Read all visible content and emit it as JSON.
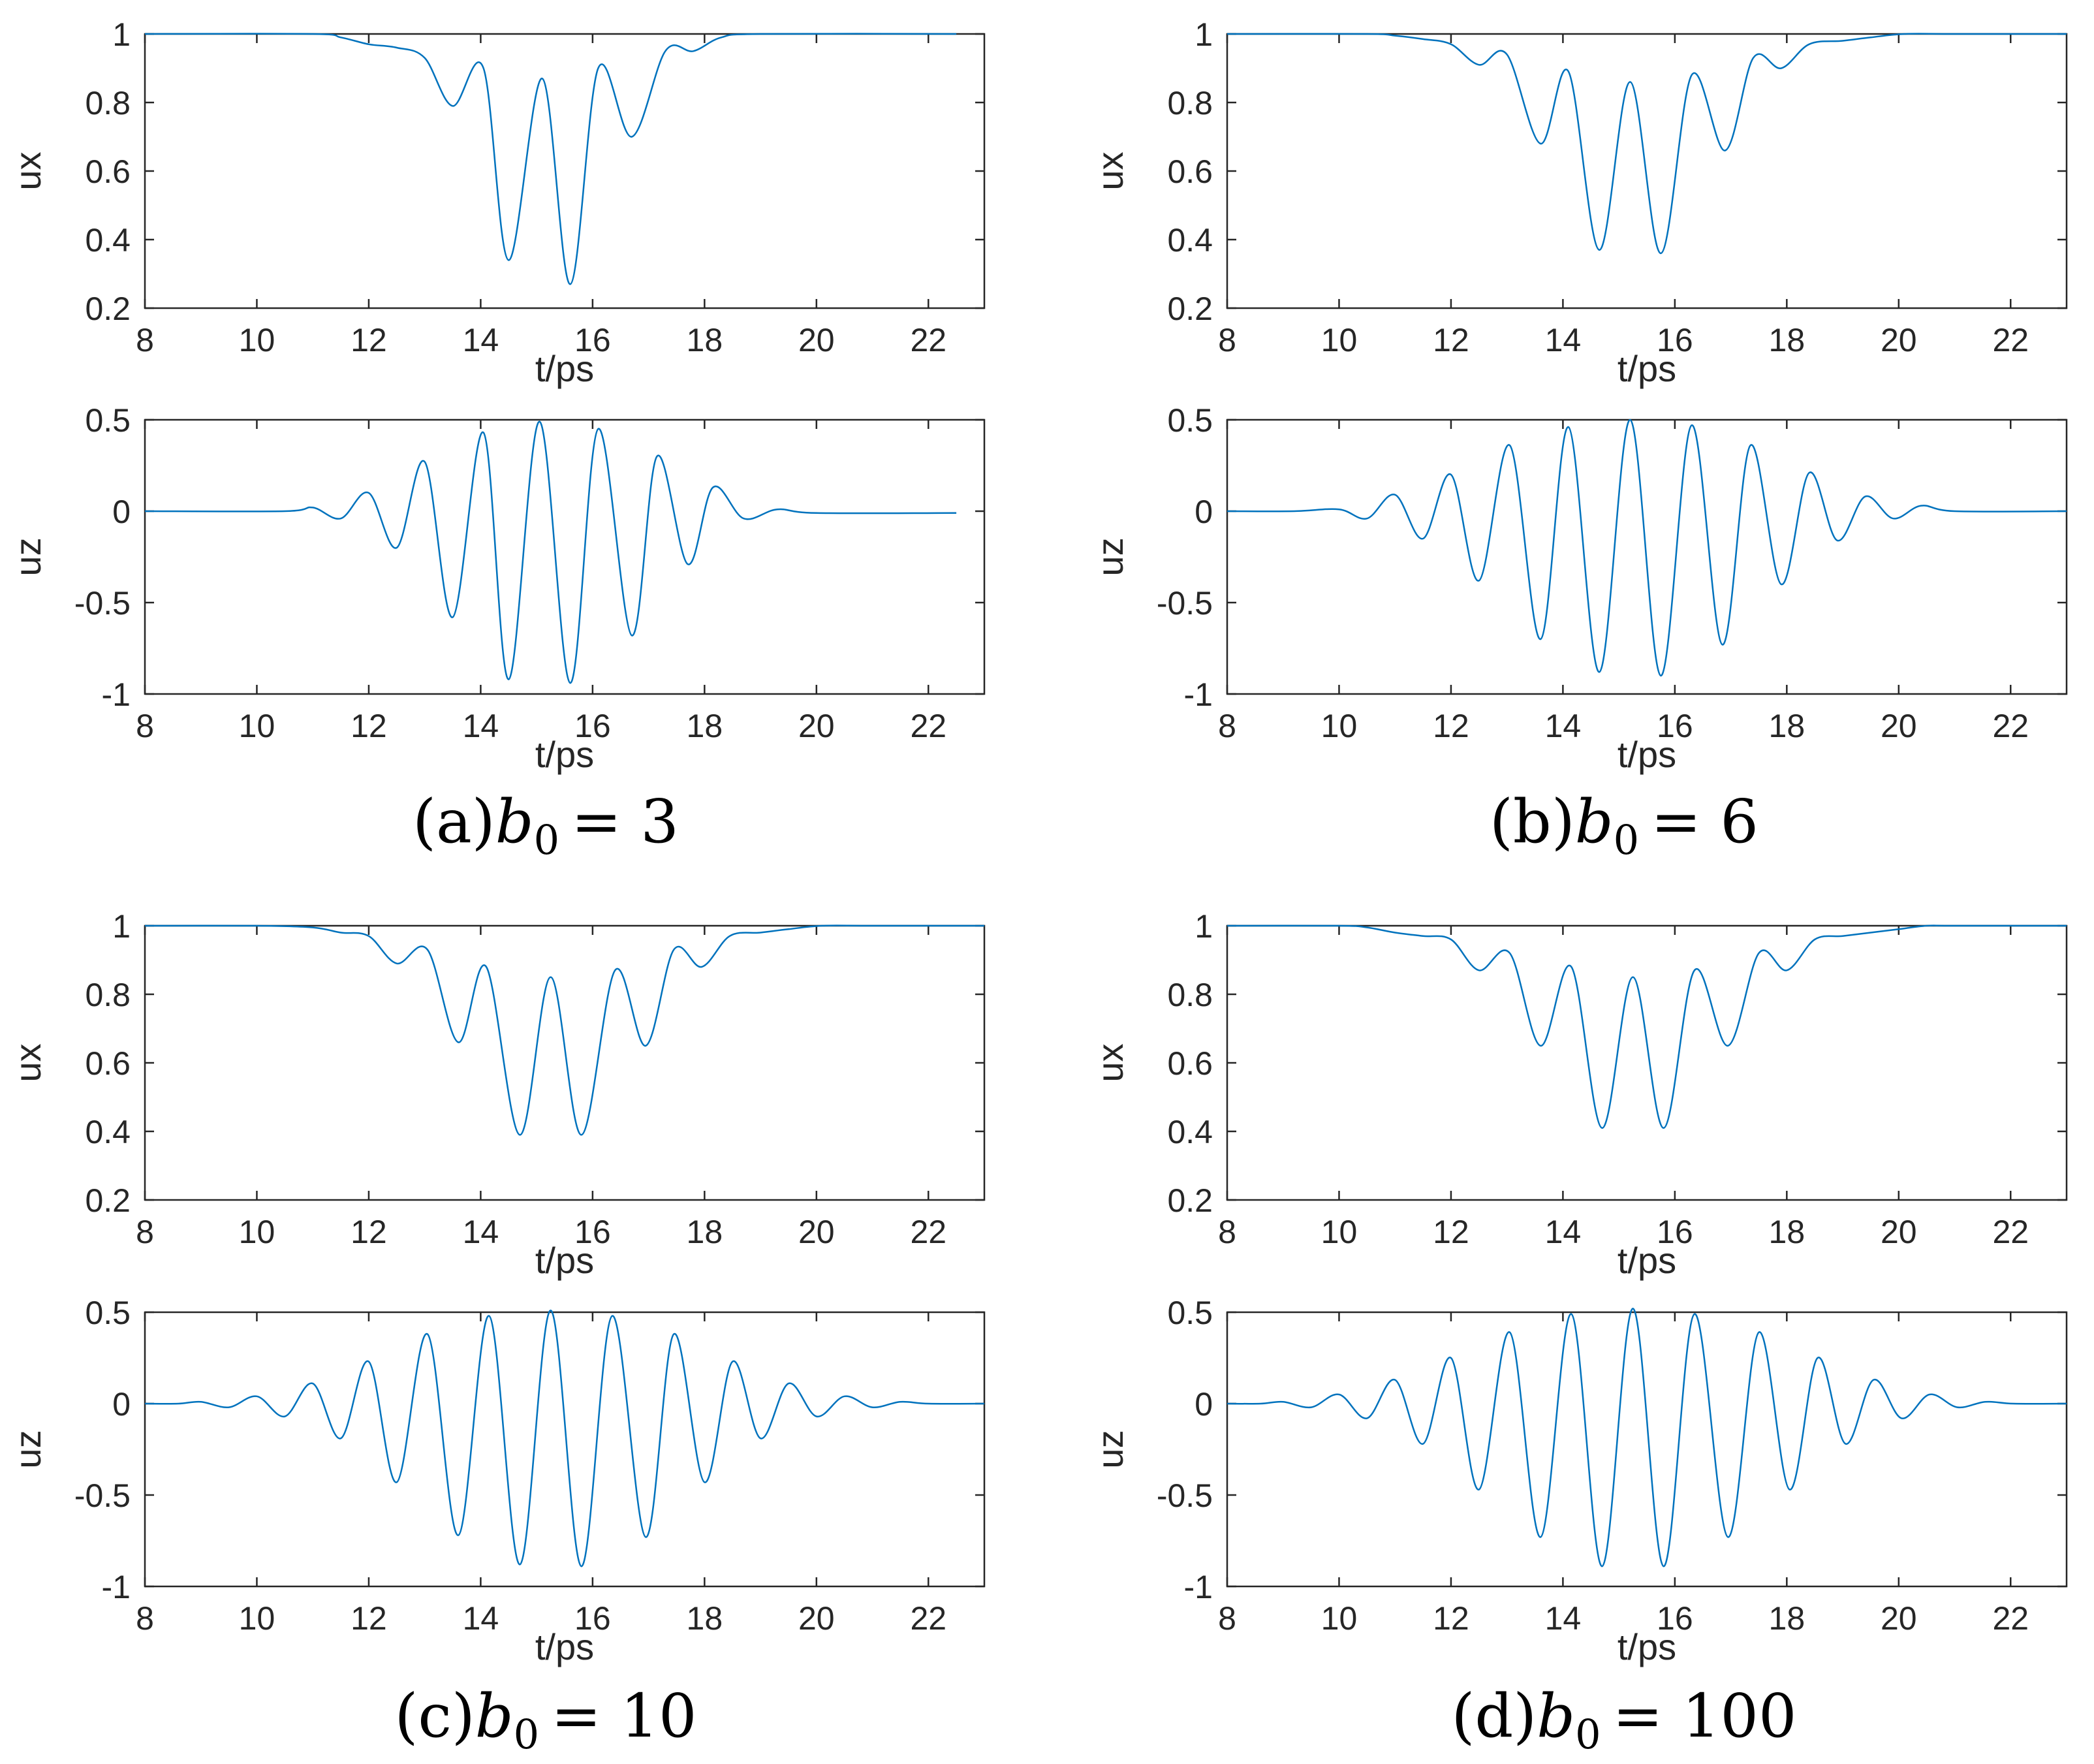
{
  "figure": {
    "panels": [
      {
        "id": "a",
        "caption_prefix": "(a)",
        "b_symbol": "b",
        "b_sub": "0",
        "b_value": "= 3"
      },
      {
        "id": "b",
        "caption_prefix": "(b)",
        "b_symbol": "b",
        "b_sub": "0",
        "b_value": "= 6"
      },
      {
        "id": "c",
        "caption_prefix": "(c)",
        "b_symbol": "b",
        "b_sub": "0",
        "b_value": "= 10"
      },
      {
        "id": "d",
        "caption_prefix": "(d)",
        "b_symbol": "b",
        "b_sub": "0",
        "b_value": "= 100"
      }
    ]
  },
  "chart_data": [
    {
      "panel": "a",
      "subplot": "ux",
      "type": "line",
      "xlabel": "t/ps",
      "ylabel": "ux",
      "xlim": [
        8,
        23
      ],
      "ylim": [
        0.2,
        1
      ],
      "xticks": [
        "8",
        "10",
        "12",
        "14",
        "16",
        "18",
        "20",
        "22"
      ],
      "yticks": [
        "0.2",
        "0.4",
        "0.6",
        "0.8",
        "1"
      ],
      "line_color": "#0072BD",
      "series": [
        {
          "x": [
            8,
            11.0,
            11.5,
            12.0,
            12.5,
            13.0,
            13.5,
            14.05,
            14.5,
            15.1,
            15.6,
            16.1,
            16.7,
            17.3,
            17.8,
            18.3,
            19,
            22.5
          ],
          "y": [
            1,
            1,
            0.99,
            0.97,
            0.96,
            0.93,
            0.79,
            0.9,
            0.34,
            0.87,
            0.27,
            0.9,
            0.7,
            0.95,
            0.95,
            0.99,
            1,
            1
          ]
        }
      ]
    },
    {
      "panel": "a",
      "subplot": "uz",
      "type": "line",
      "xlabel": "t/ps",
      "ylabel": "uz",
      "xlim": [
        8,
        23
      ],
      "ylim": [
        -1,
        0.5
      ],
      "xticks": [
        "8",
        "10",
        "12",
        "14",
        "16",
        "18",
        "20",
        "22"
      ],
      "yticks": [
        "-1",
        "-0.5",
        "0",
        "0.5"
      ],
      "line_color": "#0072BD",
      "series": [
        {
          "x": [
            8,
            10.5,
            11.0,
            11.5,
            12.0,
            12.5,
            13.0,
            13.5,
            14.05,
            14.5,
            15.05,
            15.6,
            16.1,
            16.7,
            17.15,
            17.7,
            18.15,
            18.7,
            19.3,
            20.0,
            22.5
          ],
          "y": [
            0,
            0,
            0.02,
            -0.04,
            0.1,
            -0.2,
            0.27,
            -0.58,
            0.43,
            -0.92,
            0.49,
            -0.94,
            0.45,
            -0.68,
            0.3,
            -0.29,
            0.13,
            -0.04,
            0.01,
            -0.01,
            -0.01
          ]
        }
      ]
    },
    {
      "panel": "b",
      "subplot": "ux",
      "type": "line",
      "xlabel": "t/ps",
      "ylabel": "ux",
      "xlim": [
        8,
        23
      ],
      "ylim": [
        0.2,
        1
      ],
      "xticks": [
        "8",
        "10",
        "12",
        "14",
        "16",
        "18",
        "20",
        "22"
      ],
      "yticks": [
        "0.2",
        "0.4",
        "0.6",
        "0.8",
        "1"
      ],
      "line_color": "#0072BD",
      "series": [
        {
          "x": [
            8,
            10.5,
            11.0,
            11.5,
            12.0,
            12.5,
            13.0,
            13.6,
            14.1,
            14.65,
            15.2,
            15.75,
            16.3,
            16.9,
            17.4,
            17.9,
            18.4,
            19.0,
            19.5,
            20.1,
            21,
            23
          ],
          "y": [
            1,
            1,
            0.995,
            0.985,
            0.97,
            0.91,
            0.94,
            0.68,
            0.89,
            0.37,
            0.86,
            0.36,
            0.88,
            0.66,
            0.93,
            0.9,
            0.97,
            0.98,
            0.99,
            1,
            1,
            1
          ]
        }
      ]
    },
    {
      "panel": "b",
      "subplot": "uz",
      "type": "line",
      "xlabel": "t/ps",
      "ylabel": "uz",
      "xlim": [
        8,
        23
      ],
      "ylim": [
        -1,
        0.5
      ],
      "xticks": [
        "8",
        "10",
        "12",
        "14",
        "16",
        "18",
        "20",
        "22"
      ],
      "yticks": [
        "-1",
        "-0.5",
        "0",
        "0.5"
      ],
      "line_color": "#0072BD",
      "series": [
        {
          "x": [
            8,
            9.2,
            10.0,
            10.5,
            11.0,
            11.5,
            12.0,
            12.5,
            13.05,
            13.6,
            14.1,
            14.65,
            15.2,
            15.75,
            16.3,
            16.85,
            17.35,
            17.9,
            18.4,
            18.9,
            19.4,
            19.9,
            20.4,
            21.0,
            23
          ],
          "y": [
            0,
            0,
            0.01,
            -0.04,
            0.09,
            -0.15,
            0.2,
            -0.38,
            0.36,
            -0.7,
            0.46,
            -0.88,
            0.5,
            -0.9,
            0.47,
            -0.73,
            0.36,
            -0.4,
            0.21,
            -0.16,
            0.08,
            -0.04,
            0.03,
            0,
            0
          ]
        }
      ]
    },
    {
      "panel": "c",
      "subplot": "ux",
      "type": "line",
      "xlabel": "t/ps",
      "ylabel": "ux",
      "xlim": [
        8,
        23
      ],
      "ylim": [
        0.2,
        1
      ],
      "xticks": [
        "8",
        "10",
        "12",
        "14",
        "16",
        "18",
        "20",
        "22"
      ],
      "yticks": [
        "0.2",
        "0.4",
        "0.6",
        "0.8",
        "1"
      ],
      "line_color": "#0072BD",
      "series": [
        {
          "x": [
            8,
            10,
            11.0,
            11.5,
            12.0,
            12.5,
            13.05,
            13.6,
            14.1,
            14.7,
            15.25,
            15.8,
            16.4,
            16.95,
            17.45,
            17.95,
            18.45,
            19.0,
            19.5,
            20.1,
            21,
            23
          ],
          "y": [
            1,
            1,
            0.995,
            0.98,
            0.97,
            0.89,
            0.93,
            0.66,
            0.88,
            0.39,
            0.85,
            0.39,
            0.87,
            0.65,
            0.93,
            0.88,
            0.97,
            0.98,
            0.99,
            1,
            1,
            1
          ]
        }
      ]
    },
    {
      "panel": "c",
      "subplot": "uz",
      "type": "line",
      "xlabel": "t/ps",
      "ylabel": "uz",
      "xlim": [
        8,
        23
      ],
      "ylim": [
        -1,
        0.5
      ],
      "xticks": [
        "8",
        "10",
        "12",
        "14",
        "16",
        "18",
        "20",
        "22"
      ],
      "yticks": [
        "-1",
        "-0.5",
        "0",
        "0.5"
      ],
      "line_color": "#0072BD",
      "series": [
        {
          "x": [
            8,
            8.6,
            9.0,
            9.5,
            10.0,
            10.5,
            11.0,
            11.5,
            12.0,
            12.5,
            13.05,
            13.6,
            14.15,
            14.7,
            15.25,
            15.8,
            16.35,
            16.95,
            17.45,
            18.0,
            18.5,
            19.0,
            19.5,
            20.0,
            20.5,
            21.0,
            21.5,
            22.0,
            23
          ],
          "y": [
            0,
            0,
            0.01,
            -0.02,
            0.04,
            -0.07,
            0.11,
            -0.19,
            0.23,
            -0.43,
            0.38,
            -0.72,
            0.48,
            -0.88,
            0.51,
            -0.89,
            0.48,
            -0.73,
            0.38,
            -0.43,
            0.23,
            -0.19,
            0.11,
            -0.07,
            0.04,
            -0.02,
            0.01,
            0,
            0
          ]
        }
      ]
    },
    {
      "panel": "d",
      "subplot": "ux",
      "type": "line",
      "xlabel": "t/ps",
      "ylabel": "ux",
      "xlim": [
        8,
        23
      ],
      "ylim": [
        0.2,
        1
      ],
      "xticks": [
        "8",
        "10",
        "12",
        "14",
        "16",
        "18",
        "20",
        "22"
      ],
      "yticks": [
        "0.2",
        "0.4",
        "0.6",
        "0.8",
        "1"
      ],
      "line_color": "#0072BD",
      "series": [
        {
          "x": [
            8,
            10,
            10.5,
            11.0,
            11.5,
            12.0,
            12.5,
            13.05,
            13.6,
            14.15,
            14.7,
            15.25,
            15.8,
            16.35,
            16.95,
            17.5,
            18.0,
            18.5,
            19.0,
            19.5,
            20.0,
            20.5,
            21,
            23
          ],
          "y": [
            1,
            1,
            0.995,
            0.98,
            0.97,
            0.96,
            0.87,
            0.92,
            0.65,
            0.88,
            0.41,
            0.85,
            0.41,
            0.87,
            0.65,
            0.92,
            0.87,
            0.96,
            0.97,
            0.98,
            0.99,
            1,
            1,
            1
          ]
        }
      ]
    },
    {
      "panel": "d",
      "subplot": "uz",
      "type": "line",
      "xlabel": "t/ps",
      "ylabel": "uz",
      "xlim": [
        8,
        23
      ],
      "ylim": [
        -1,
        0.5
      ],
      "xticks": [
        "8",
        "10",
        "12",
        "14",
        "16",
        "18",
        "20",
        "22"
      ],
      "yticks": [
        "-1",
        "-0.5",
        "0",
        "0.5"
      ],
      "line_color": "#0072BD",
      "series": [
        {
          "x": [
            8,
            8.6,
            9.0,
            9.5,
            10.0,
            10.5,
            11.0,
            11.5,
            12.0,
            12.5,
            13.05,
            13.6,
            14.15,
            14.7,
            15.25,
            15.8,
            16.35,
            16.95,
            17.5,
            18.05,
            18.55,
            19.05,
            19.55,
            20.05,
            20.55,
            21.05,
            21.55,
            22.05,
            23
          ],
          "y": [
            0,
            0,
            0.01,
            -0.02,
            0.05,
            -0.08,
            0.13,
            -0.22,
            0.25,
            -0.47,
            0.39,
            -0.73,
            0.49,
            -0.89,
            0.52,
            -0.89,
            0.49,
            -0.73,
            0.39,
            -0.47,
            0.25,
            -0.22,
            0.13,
            -0.08,
            0.05,
            -0.02,
            0.01,
            0,
            0
          ]
        }
      ]
    }
  ]
}
